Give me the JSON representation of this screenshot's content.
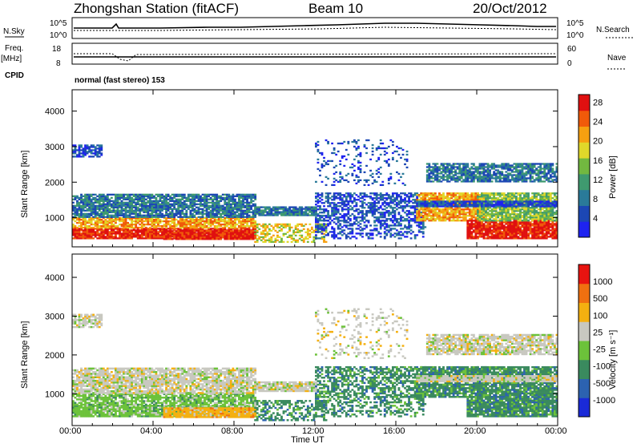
{
  "header": {
    "station": "Zhongshan Station (fitACF)",
    "beam": "Beam 10",
    "date": "20/Oct/2012"
  },
  "top_panels": {
    "nsky_label": "N.Sky",
    "nsearch_label": "N.Search",
    "noise_ticks": [
      "10^5",
      "10^0"
    ],
    "freq_label": "Freq.",
    "freq_unit": "[MHz]",
    "freq_ticks": [
      "18",
      "8"
    ],
    "nave_label": "Nave",
    "nave_ticks": [
      "60",
      "0"
    ],
    "cpid_label": "CPID",
    "cpid_text": "normal (fast stereo) 153"
  },
  "chart_data": [
    {
      "type": "heatmap",
      "name": "power",
      "ylabel": "Slant Range [km]",
      "yticks": [
        "1000",
        "2000",
        "3000",
        "4000"
      ],
      "ylim": [
        180,
        4600
      ],
      "colorbar": {
        "label": "Power [dB]",
        "ticks": [
          "4",
          "8",
          "12",
          "16",
          "20",
          "24",
          "28"
        ],
        "range": [
          0,
          30
        ],
        "colors": [
          "#1e23f0",
          "#1c47b4",
          "#2a7a99",
          "#3f9a6f",
          "#72b840",
          "#e0d82a",
          "#f6a010",
          "#f05a0a",
          "#e01010"
        ]
      }
    },
    {
      "type": "heatmap",
      "name": "velocity",
      "ylabel": "Slant Range [km]",
      "yticks": [
        "1000",
        "2000",
        "3000",
        "4000"
      ],
      "ylim": [
        180,
        4600
      ],
      "colorbar": {
        "label": "Velocity [m s⁻¹]",
        "ticks": [
          "1000",
          "500",
          "100",
          "25",
          "-25",
          "-100",
          "-500",
          "-1000"
        ],
        "colors": [
          "#1a2ad8",
          "#2c62b0",
          "#3a8a5e",
          "#6cc23a",
          "#c8c8c0",
          "#f4b010",
          "#f07010",
          "#e81410"
        ]
      }
    }
  ],
  "time_axis": {
    "label": "Time UT",
    "ticks": [
      "00:00",
      "04:00",
      "08:00",
      "12:00",
      "16:00",
      "20:00",
      "00:00"
    ]
  }
}
